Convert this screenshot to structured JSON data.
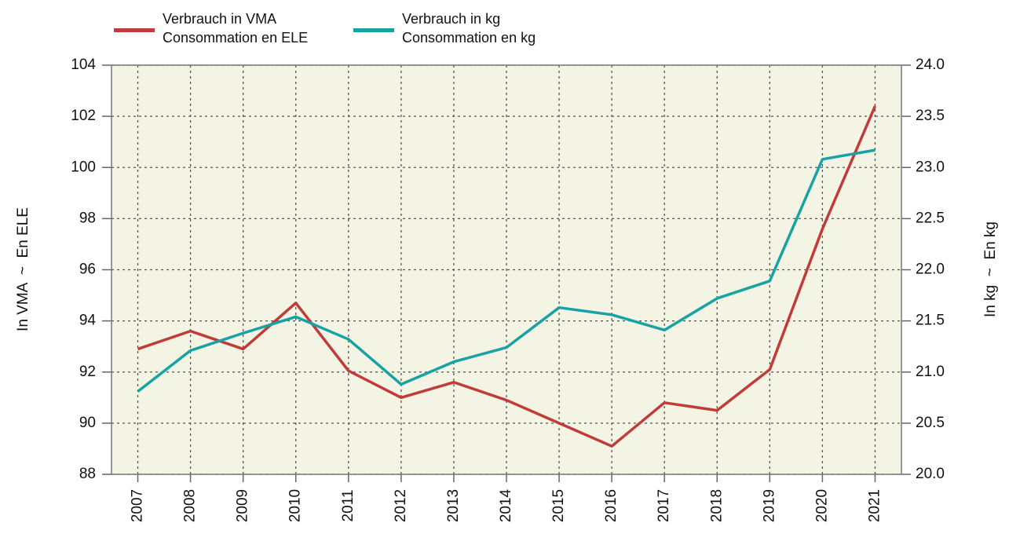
{
  "chart_data": {
    "type": "line",
    "categories": [
      "2007",
      "2008",
      "2009",
      "2010",
      "2011",
      "2012",
      "2013",
      "2014",
      "2015",
      "2016",
      "2017",
      "2018",
      "2019",
      "2020",
      "2021"
    ],
    "series": [
      {
        "name": "Verbrauch in VMA\nConsommation en ELE",
        "color": "#c23b3b",
        "axis": "y",
        "values": [
          92.9,
          93.6,
          92.9,
          94.7,
          92.05,
          91.0,
          91.6,
          90.9,
          90.0,
          89.1,
          90.8,
          90.5,
          92.1,
          97.6,
          102.4
        ]
      },
      {
        "name": "Verbrauch in kg\nConsommation en kg",
        "color": "#17a2a4",
        "axis": "y2",
        "values": [
          20.81,
          21.21,
          21.38,
          21.54,
          21.32,
          20.88,
          21.1,
          21.24,
          21.63,
          21.56,
          21.41,
          21.72,
          21.89,
          23.08,
          23.17
        ]
      }
    ],
    "y_label": "In VMA  ~  En ELE",
    "y2_label": "In kg  ~  En kg",
    "ylim": [
      88,
      104
    ],
    "yticks": [
      88,
      90,
      92,
      94,
      96,
      98,
      100,
      102,
      104
    ],
    "y2lim": [
      20,
      24
    ],
    "y2ticks": [
      {
        "value": 20,
        "label": "20.0"
      },
      {
        "value": 20.5,
        "label": "20.5"
      },
      {
        "value": 21,
        "label": "21.0"
      },
      {
        "value": 21.5,
        "label": "21.5"
      },
      {
        "value": 22,
        "label": "22.0"
      },
      {
        "value": 22.5,
        "label": "22.5"
      },
      {
        "value": 23,
        "label": "23.0"
      },
      {
        "value": 23.5,
        "label": "23.5"
      },
      {
        "value": 24,
        "label": "24.0"
      }
    ],
    "grid": true
  }
}
